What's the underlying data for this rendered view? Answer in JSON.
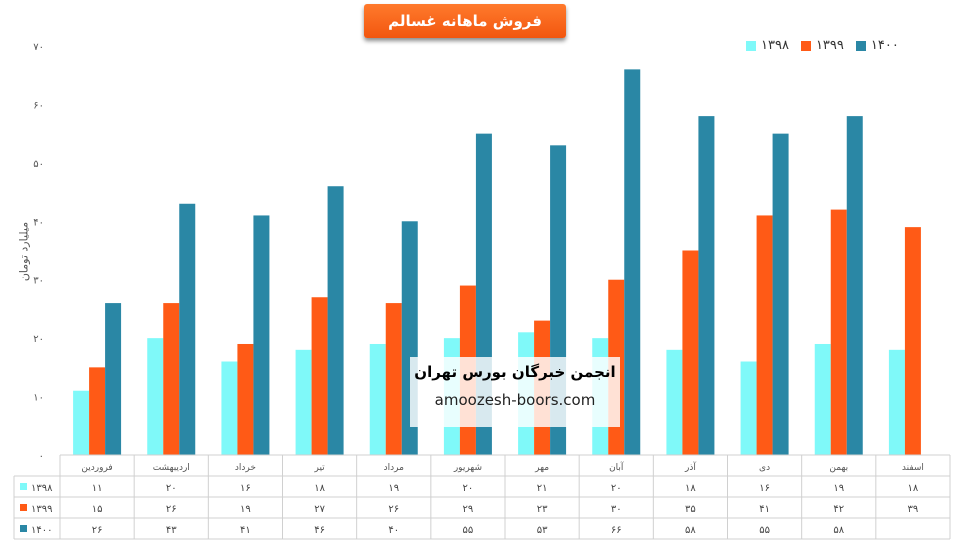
{
  "chart_data": {
    "type": "bar",
    "title": "فروش ماهانه غسالم",
    "ylabel": "میلیارد تومان",
    "ylim": [
      0,
      70
    ],
    "y_ticks": [
      "۰",
      "۱۰",
      "۲۰",
      "۳۰",
      "۴۰",
      "۵۰",
      "۶۰",
      "۷۰"
    ],
    "y_tick_values": [
      0,
      10,
      20,
      30,
      40,
      50,
      60,
      70
    ],
    "grid": false,
    "legend_position": "top-right",
    "categories": [
      "فروردین",
      "اردیبهشت",
      "خرداد",
      "تیر",
      "مرداد",
      "شهریور",
      "مهر",
      "آبان",
      "آذر",
      "دی",
      "بهمن",
      "اسفند"
    ],
    "series": [
      {
        "name": "۱۳۹۸",
        "color": "#7ff9f9",
        "values": [
          11,
          20,
          16,
          18,
          19,
          20,
          21,
          20,
          18,
          16,
          19,
          18
        ],
        "labels": [
          "۱۱",
          "۲۰",
          "۱۶",
          "۱۸",
          "۱۹",
          "۲۰",
          "۲۱",
          "۲۰",
          "۱۸",
          "۱۶",
          "۱۹",
          "۱۸"
        ]
      },
      {
        "name": "۱۳۹۹",
        "color": "#ff5a16",
        "values": [
          15,
          26,
          19,
          27,
          26,
          29,
          23,
          30,
          35,
          41,
          42,
          39
        ],
        "labels": [
          "۱۵",
          "۲۶",
          "۱۹",
          "۲۷",
          "۲۶",
          "۲۹",
          "۲۳",
          "۳۰",
          "۳۵",
          "۴۱",
          "۴۲",
          "۳۹"
        ]
      },
      {
        "name": "۱۴۰۰",
        "color": "#2a87a5",
        "values": [
          26,
          43,
          41,
          46,
          40,
          55,
          53,
          66,
          58,
          55,
          58,
          null
        ],
        "labels": [
          "۲۶",
          "۴۳",
          "۴۱",
          "۴۶",
          "۴۰",
          "۵۵",
          "۵۳",
          "۶۶",
          "۵۸",
          "۵۵",
          "۵۸",
          ""
        ]
      }
    ]
  },
  "watermark": {
    "title": "انجمن خبرگان بورس تهران",
    "url": "amoozesh-boors.com"
  }
}
